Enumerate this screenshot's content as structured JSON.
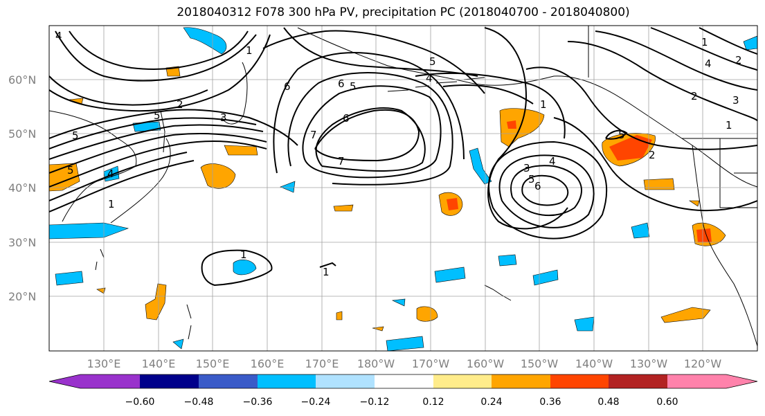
{
  "title": "2018040312 F078 300 hPa PV, precipitation PC (2018040700 - 2018040800)",
  "lat_labels": [
    "60°N",
    "50°N",
    "40°N",
    "30°N",
    "20°N"
  ],
  "lon_labels": [
    "130°E",
    "140°E",
    "150°E",
    "160°E",
    "170°E",
    "180°W",
    "170°W",
    "160°W",
    "150°W",
    "140°W",
    "130°W",
    "120°W"
  ],
  "colorbar": {
    "ticks": [
      "−0.60",
      "−0.48",
      "−0.36",
      "−0.24",
      "−0.12",
      "0.12",
      "0.24",
      "0.36",
      "0.48",
      "0.60"
    ],
    "colors": [
      "#9932cc",
      "#00008b",
      "#3a5bc8",
      "#00bfff",
      "#b0e2ff",
      "#ffffff",
      "#ffec8b",
      "#ffa500",
      "#ff4500",
      "#b22222",
      "#ff82ab"
    ]
  },
  "contour_labels": [
    "4",
    "1",
    "2",
    "5",
    "3",
    "6",
    "7",
    "5",
    "6",
    "4",
    "7",
    "6",
    "5",
    "4",
    "1",
    "5",
    "3",
    "5",
    "6",
    "4",
    "2",
    "1",
    "2",
    "3",
    "1",
    "2",
    "4",
    "5",
    "5",
    "1",
    "1",
    "1"
  ]
}
